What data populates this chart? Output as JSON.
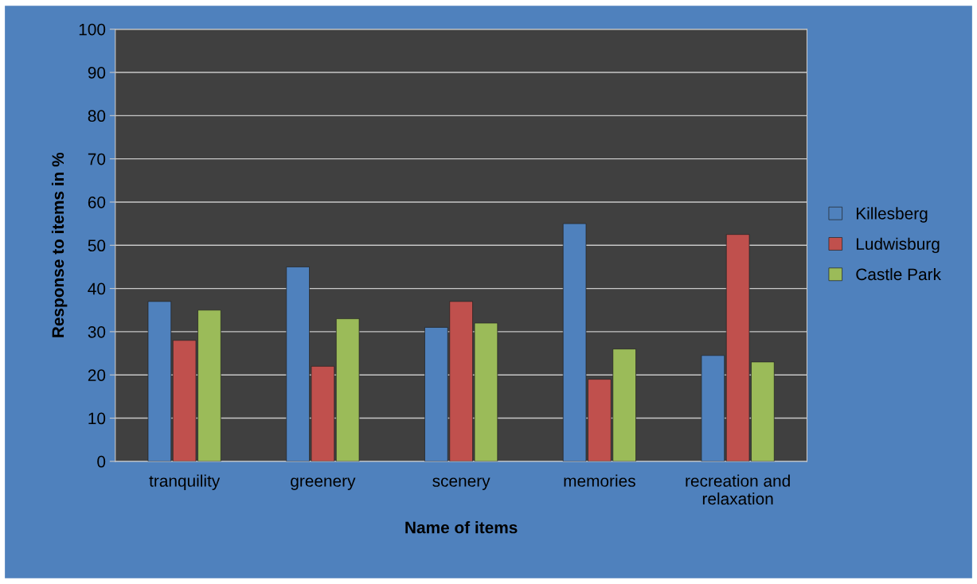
{
  "chart_data": {
    "type": "bar",
    "xlabel": "Name of items",
    "ylabel": "Response to items in %",
    "categories": [
      "tranquility",
      "greenery",
      "scenery",
      "memories",
      "recreation and relaxation"
    ],
    "series": [
      {
        "name": "Killesberg",
        "color": "#4f81bd",
        "values": [
          37,
          45,
          31,
          55,
          24.5
        ]
      },
      {
        "name": "Ludwisburg",
        "color": "#c0504d",
        "values": [
          28,
          22,
          37,
          19,
          52.5
        ]
      },
      {
        "name": "Castle Park",
        "color": "#9bbb59",
        "values": [
          35,
          33,
          32,
          26,
          23
        ]
      }
    ],
    "ylim": [
      0,
      100
    ],
    "yticks": [
      0,
      10,
      20,
      30,
      40,
      50,
      60,
      70,
      80,
      90,
      100
    ],
    "grid": "y",
    "legend": "right"
  }
}
